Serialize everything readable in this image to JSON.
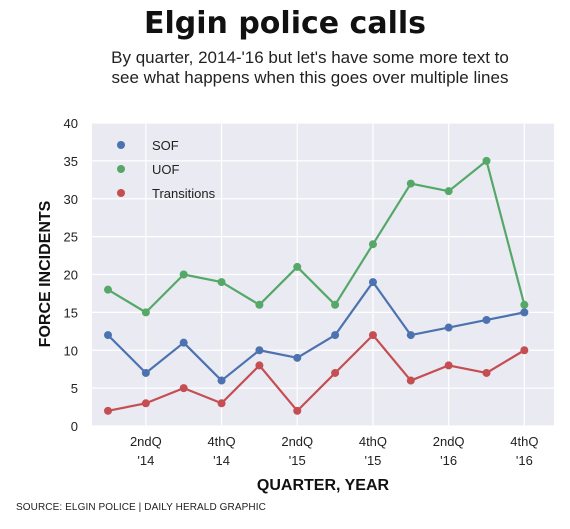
{
  "chart_data": {
    "type": "line",
    "title": "Elgin police calls",
    "subtitle": "By quarter, 2014-'16 but let's have some more text to see what happens when this goes over multiple lines",
    "xlabel": "QUARTER, YEAR",
    "ylabel": "FORCE INCIDENTS",
    "ylim": [
      0,
      40
    ],
    "yticks": [
      0,
      5,
      10,
      15,
      20,
      25,
      30,
      35,
      40
    ],
    "x_points": 12,
    "xticks": [
      {
        "index": 1,
        "line1": "2ndQ",
        "line2": "'14"
      },
      {
        "index": 3,
        "line1": "4thQ",
        "line2": "'14"
      },
      {
        "index": 5,
        "line1": "2ndQ",
        "line2": "'15"
      },
      {
        "index": 7,
        "line1": "4thQ",
        "line2": "'15"
      },
      {
        "index": 9,
        "line1": "2ndQ",
        "line2": "'16"
      },
      {
        "index": 11,
        "line1": "4thQ",
        "line2": "'16"
      }
    ],
    "grid": true,
    "legend_position": "top-left",
    "series": [
      {
        "name": "SOF",
        "color": "#4c72b0",
        "values": [
          12,
          7,
          11,
          6,
          10,
          9,
          12,
          19,
          12,
          13,
          14,
          15
        ]
      },
      {
        "name": "UOF",
        "color": "#55a868",
        "values": [
          18,
          15,
          20,
          19,
          16,
          21,
          16,
          24,
          32,
          31,
          35,
          16
        ]
      },
      {
        "name": "Transitions",
        "color": "#c44e52",
        "values": [
          2,
          3,
          5,
          3,
          8,
          2,
          7,
          12,
          6,
          8,
          7,
          10
        ]
      }
    ],
    "source": "SOURCE: ELGIN POLICE | DAILY HERALD GRAPHIC"
  }
}
